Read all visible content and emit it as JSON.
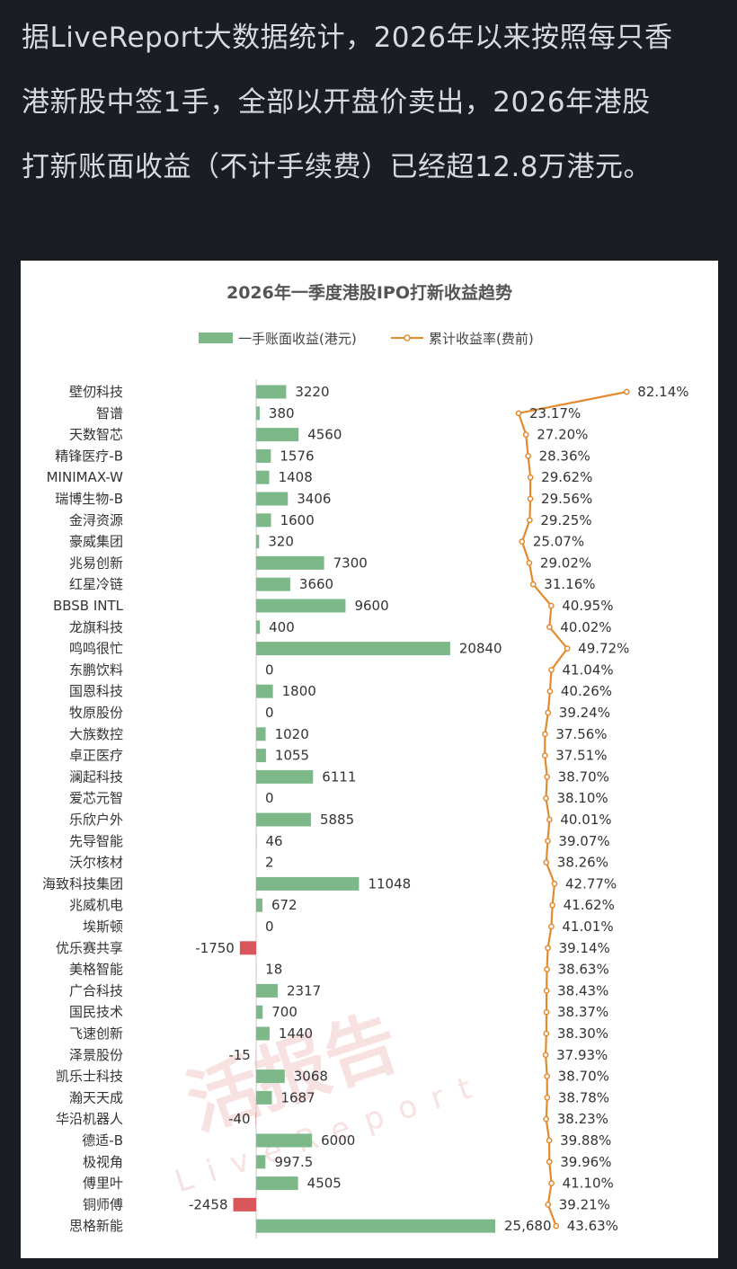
{
  "caption": {
    "lines": [
      "据LiveReport大数据统计，2026年以来按照每只香",
      "港新股中签1手，全部以开盘价卖出，2026年港股",
      "打新账面收益（不计手续费）已经超12.8万港元。"
    ]
  },
  "watermark": {
    "main": "活报告",
    "sub": "LiveReport"
  },
  "colors": {
    "positive_bar": "#7db889",
    "negative_bar": "#d9575a",
    "line": "#e38a2e",
    "axis": "#c8c8c8"
  },
  "chart_data": {
    "type": "bar",
    "title": "2026年一季度港股IPO打新收益趋势",
    "legend": {
      "placement": "top-center",
      "bar_series_name": "一手账面收益(港元)",
      "line_series_name": "累计收益率(费前)"
    },
    "categories": [
      "壁仞科技",
      "智谱",
      "天数智芯",
      "精锋医疗-B",
      "MINIMAX-W",
      "瑞博生物-B",
      "金浔资源",
      "豪威集团",
      "兆易创新",
      "红星冷链",
      "BBSB INTL",
      "龙旗科技",
      "鸣鸣很忙",
      "东鹏饮料",
      "国恩科技",
      "牧原股份",
      "大族数控",
      "卓正医疗",
      "澜起科技",
      "爱芯元智",
      "乐欣户外",
      "先导智能",
      "沃尔核材",
      "海致科技集团",
      "兆威机电",
      "埃斯顿",
      "优乐赛共享",
      "美格智能",
      "广合科技",
      "国民技术",
      "飞速创新",
      "泽景股份",
      "凯乐士科技",
      "瀚天天成",
      "华沿机器人",
      "德适-B",
      "极视角",
      "傅里叶",
      "铜师傅",
      "思格新能"
    ],
    "bar_values": [
      3220,
      380,
      4560,
      1576,
      1408,
      3406,
      1600,
      320,
      7300,
      3660,
      9600,
      400,
      20840,
      0,
      1800,
      0,
      1020,
      1055,
      6111,
      0,
      5885,
      46,
      2,
      11048,
      672,
      0,
      -1750,
      18,
      2317,
      700,
      1440,
      -15,
      3068,
      1687,
      -40,
      6000,
      997.5,
      4505,
      -2458,
      25680
    ],
    "bar_labels": [
      "3220",
      "380",
      "4560",
      "1576",
      "1408",
      "3406",
      "1600",
      "320",
      "7300",
      "3660",
      "9600",
      "400",
      "20840",
      "0",
      "1800",
      "0",
      "1020",
      "1055",
      "6111",
      "0",
      "5885",
      "46",
      "2",
      "11048",
      "672",
      "0",
      "-1750",
      "18",
      "2317",
      "700",
      "1440",
      "-15",
      "3068",
      "1687",
      "-40",
      "6000",
      "997.5",
      "4505",
      "-2458",
      "25,680"
    ],
    "line_values": [
      82.14,
      23.17,
      27.2,
      28.36,
      29.62,
      29.56,
      29.25,
      25.07,
      29.02,
      31.16,
      40.95,
      40.02,
      49.72,
      41.04,
      40.26,
      39.24,
      37.56,
      37.51,
      38.7,
      38.1,
      40.01,
      39.07,
      38.26,
      42.77,
      41.62,
      41.01,
      39.14,
      38.63,
      38.43,
      38.37,
      38.3,
      37.93,
      38.7,
      38.78,
      38.23,
      39.88,
      39.96,
      41.1,
      39.21,
      43.63
    ],
    "line_labels": [
      "82.14%",
      "23.17%",
      "27.20%",
      "28.36%",
      "29.62%",
      "29.56%",
      "29.25%",
      "25.07%",
      "29.02%",
      "31.16%",
      "40.95%",
      "40.02%",
      "49.72%",
      "41.04%",
      "40.26%",
      "39.24%",
      "37.56%",
      "37.51%",
      "38.70%",
      "38.10%",
      "40.01%",
      "39.07%",
      "38.26%",
      "42.77%",
      "41.62%",
      "41.01%",
      "39.14%",
      "38.63%",
      "38.43%",
      "38.37%",
      "38.30%",
      "37.93%",
      "38.70%",
      "38.78%",
      "38.23%",
      "39.88%",
      "39.96%",
      "41.10%",
      "39.21%",
      "43.63%"
    ]
  }
}
